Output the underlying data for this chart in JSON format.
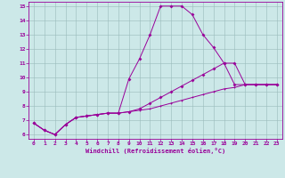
{
  "bg_color": "#cce8e8",
  "line_color": "#990099",
  "xlabel": "Windchill (Refroidissement éolien,°C)",
  "xlim": [
    -0.5,
    23.5
  ],
  "ylim": [
    5.7,
    15.3
  ],
  "xticks": [
    0,
    1,
    2,
    3,
    4,
    5,
    6,
    7,
    8,
    9,
    10,
    11,
    12,
    13,
    14,
    15,
    16,
    17,
    18,
    19,
    20,
    21,
    22,
    23
  ],
  "yticks": [
    6,
    7,
    8,
    9,
    10,
    11,
    12,
    13,
    14,
    15
  ],
  "line1_x": [
    0,
    1,
    2,
    3,
    4,
    5,
    6,
    7,
    8,
    9,
    10,
    11,
    12,
    13,
    14,
    15,
    16,
    17,
    18,
    19,
    20,
    21,
    22,
    23
  ],
  "line1_y": [
    6.8,
    6.3,
    6.0,
    6.7,
    7.2,
    7.3,
    7.4,
    7.5,
    7.5,
    7.6,
    7.7,
    7.8,
    8.0,
    8.2,
    8.4,
    8.6,
    8.8,
    9.0,
    9.2,
    9.3,
    9.5,
    9.5,
    9.5,
    9.5
  ],
  "line2_x": [
    0,
    1,
    2,
    3,
    4,
    5,
    6,
    7,
    8,
    9,
    10,
    11,
    12,
    13,
    14,
    15,
    16,
    17,
    18,
    19,
    20,
    21,
    22,
    23
  ],
  "line2_y": [
    6.8,
    6.3,
    6.0,
    6.7,
    7.2,
    7.3,
    7.4,
    7.5,
    7.5,
    9.9,
    11.3,
    13.0,
    15.0,
    15.0,
    15.0,
    14.4,
    13.0,
    12.1,
    11.0,
    9.5,
    9.5,
    9.5,
    9.5,
    9.5
  ],
  "line3_x": [
    0,
    1,
    2,
    3,
    4,
    5,
    6,
    7,
    8,
    9,
    10,
    11,
    12,
    13,
    14,
    15,
    16,
    17,
    18,
    19,
    20,
    21,
    22,
    23
  ],
  "line3_y": [
    6.8,
    6.3,
    6.0,
    6.7,
    7.2,
    7.3,
    7.4,
    7.5,
    7.5,
    7.6,
    7.8,
    8.2,
    8.6,
    9.0,
    9.4,
    9.8,
    10.2,
    10.6,
    11.0,
    11.0,
    9.5,
    9.5,
    9.5,
    9.5
  ]
}
